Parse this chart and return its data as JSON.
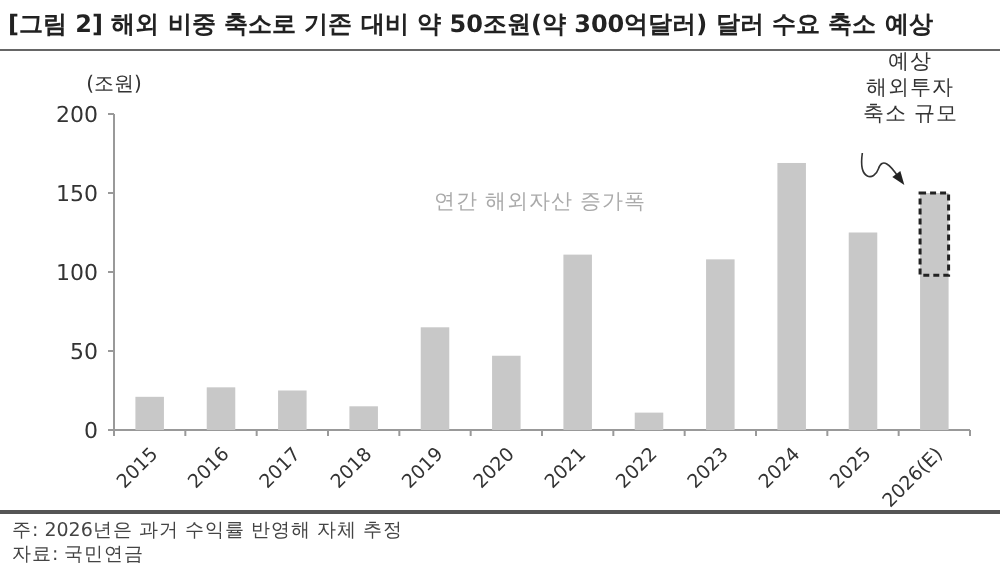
{
  "chart_data": {
    "type": "bar",
    "stacked": true,
    "title": "[그림 2] 해외 비중 축소로 기존 대비 약 50조원(약 300억달러) 달러 수요 축소 예상",
    "ylabel": "(조원)",
    "categories": [
      "2015",
      "2016",
      "2017",
      "2018",
      "2019",
      "2020",
      "2021",
      "2022",
      "2023",
      "2024",
      "2025",
      "2026(E)"
    ],
    "series": [
      {
        "name": "연간 해외자산 증가폭",
        "color": "#c8c8c8",
        "values": [
          21,
          27,
          25,
          15,
          65,
          47,
          111,
          11,
          108,
          169,
          125,
          98
        ]
      },
      {
        "name": "예상\n해외투자\n축소 규모",
        "color": "#c8c8c8",
        "line_style": "dashed",
        "values": [
          null,
          null,
          null,
          null,
          null,
          null,
          null,
          null,
          null,
          null,
          null,
          52
        ]
      }
    ],
    "ylim": [
      0,
      200
    ],
    "yticks": [
      0,
      50,
      100,
      150,
      200
    ],
    "grid": false,
    "annotations": [
      "주: 2026년은 과거 수익률 반영해 자체 추정",
      "자료: 국민연금"
    ]
  }
}
